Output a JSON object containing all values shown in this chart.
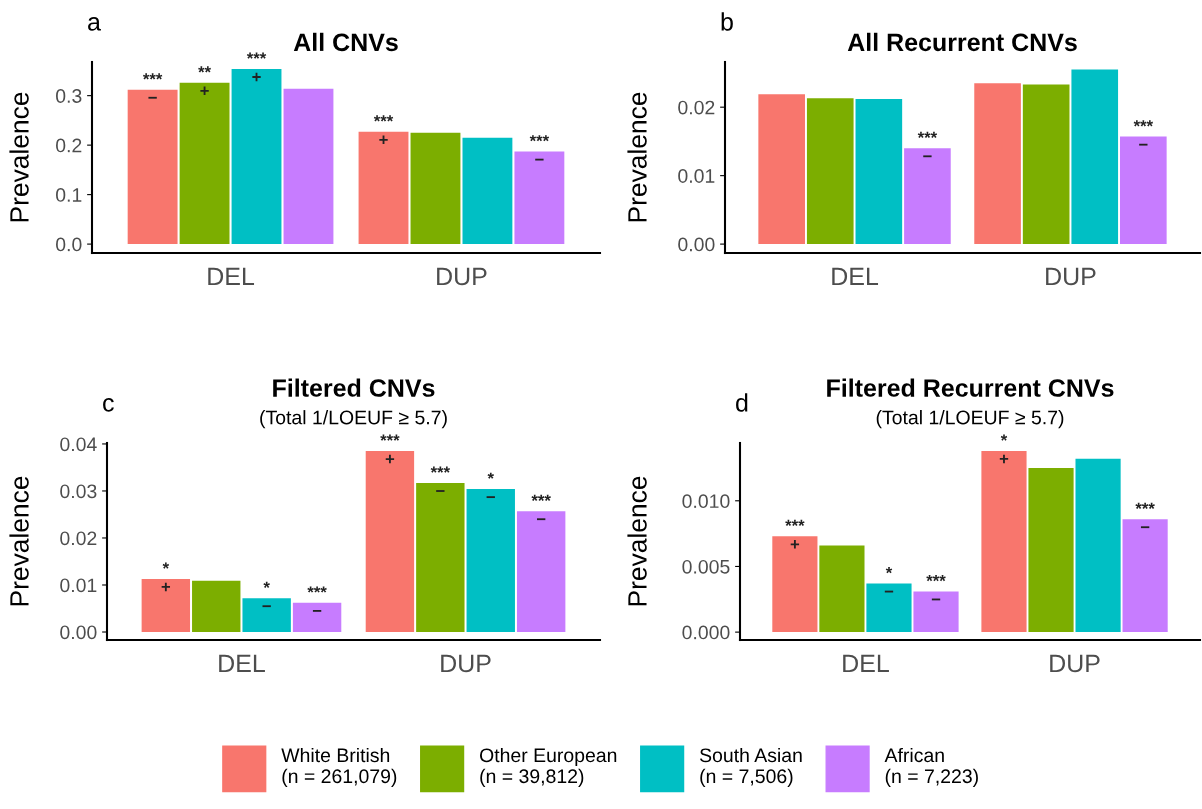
{
  "chart_data": [
    {
      "type": "bar",
      "title": "All CNVs",
      "ylabel": "Prevalence",
      "annotations": [
        "a"
      ],
      "categories": [
        "DEL",
        "DUP"
      ],
      "ylim": [
        -0.018,
        0.368
      ],
      "yticks": [
        {
          "value": 0.0,
          "label": "0.0"
        },
        0.1,
        0.2,
        0.3
      ],
      "grid": false,
      "legend": "bottom",
      "series": [
        {
          "name": "White British\n(n = 261,079)",
          "color": "#f8766d",
          "values": [
            0.312,
            0.227
          ],
          "value_labels": [
            "***\n−",
            "***\n+"
          ]
        },
        {
          "name": "Other European\n(n = 39,812)",
          "color": "#7cae00",
          "values": [
            0.326,
            0.225
          ],
          "value_labels": [
            "**\n+",
            null
          ]
        },
        {
          "name": "South Asian\n(n = 7,506)",
          "color": "#00bfc4",
          "values": [
            0.354,
            0.215
          ],
          "value_labels": [
            "***\n+",
            null
          ]
        },
        {
          "name": "African\n(n = 7,223)",
          "color": "#c77cff",
          "values": [
            0.314,
            0.187
          ],
          "value_labels": [
            null,
            "***\n−"
          ]
        }
      ]
    },
    {
      "type": "bar",
      "title": "All Recurrent CNVs",
      "ylabel": "Prevalence",
      "annotations": [
        "b"
      ],
      "categories": [
        "DEL",
        "DUP"
      ],
      "ylim": [
        -0.0013,
        0.0266
      ],
      "yticks": [
        {
          "value": 0.0,
          "label": "0.00"
        },
        0.01,
        0.02
      ],
      "grid": false,
      "series": [
        {
          "color": "#f8766d",
          "values": [
            0.0219,
            0.0235
          ],
          "value_labels": [
            null,
            null
          ]
        },
        {
          "color": "#7cae00",
          "values": [
            0.0213,
            0.0233
          ],
          "value_labels": [
            null,
            null
          ]
        },
        {
          "color": "#00bfc4",
          "values": [
            0.0212,
            0.0255
          ],
          "value_labels": [
            null,
            null
          ]
        },
        {
          "color": "#c77cff",
          "values": [
            0.014,
            0.0157
          ],
          "value_labels": [
            "***\n−",
            "***\n−"
          ]
        }
      ]
    },
    {
      "type": "bar",
      "title": "Filtered CNVs",
      "subtitle": "(Total 1/LOEUF ≥ 5.7)",
      "ylabel": "Prevalence",
      "annotations": [
        "c"
      ],
      "categories": [
        "DEL",
        "DUP"
      ],
      "ylim": [
        -0.0017,
        0.0402
      ],
      "yticks": [
        {
          "value": 0.0,
          "label": "0.00"
        },
        0.01,
        0.02,
        0.03,
        0.04
      ],
      "grid": false,
      "series": [
        {
          "color": "#f8766d",
          "values": [
            0.0113,
            0.0385
          ],
          "value_labels": [
            "*\n+",
            "***\n+"
          ]
        },
        {
          "color": "#7cae00",
          "values": [
            0.0109,
            0.0317
          ],
          "value_labels": [
            null,
            "***\n−"
          ]
        },
        {
          "color": "#00bfc4",
          "values": [
            0.0072,
            0.0304
          ],
          "value_labels": [
            "*\n−",
            "*\n−"
          ]
        },
        {
          "color": "#c77cff",
          "values": [
            0.0062,
            0.0257
          ],
          "value_labels": [
            "***\n−",
            "***\n−"
          ]
        }
      ]
    },
    {
      "type": "bar",
      "title": "Filtered Recurrent CNVs",
      "subtitle": "(Total 1/LOEUF ≥ 5.7)",
      "ylabel": "Prevalence",
      "annotations": [
        "d"
      ],
      "categories": [
        "DEL",
        "DUP"
      ],
      "ylim": [
        -0.0006,
        0.0144
      ],
      "yticks": [
        {
          "value": 0.0,
          "label": "0.000"
        },
        {
          "value": 0.005,
          "label": "0.005"
        },
        {
          "value": 0.01,
          "label": "0.010"
        }
      ],
      "grid": false,
      "series": [
        {
          "color": "#f8766d",
          "values": [
            0.0073,
            0.0138
          ],
          "value_labels": [
            "***\n+",
            "*\n+"
          ]
        },
        {
          "color": "#7cae00",
          "values": [
            0.0066,
            0.0125
          ],
          "value_labels": [
            null,
            null
          ]
        },
        {
          "color": "#00bfc4",
          "values": [
            0.0037,
            0.0132
          ],
          "value_labels": [
            "*\n−",
            null
          ]
        },
        {
          "color": "#c77cff",
          "values": [
            0.0031,
            0.0086
          ],
          "value_labels": [
            "***\n−",
            "***\n−"
          ]
        }
      ]
    }
  ]
}
